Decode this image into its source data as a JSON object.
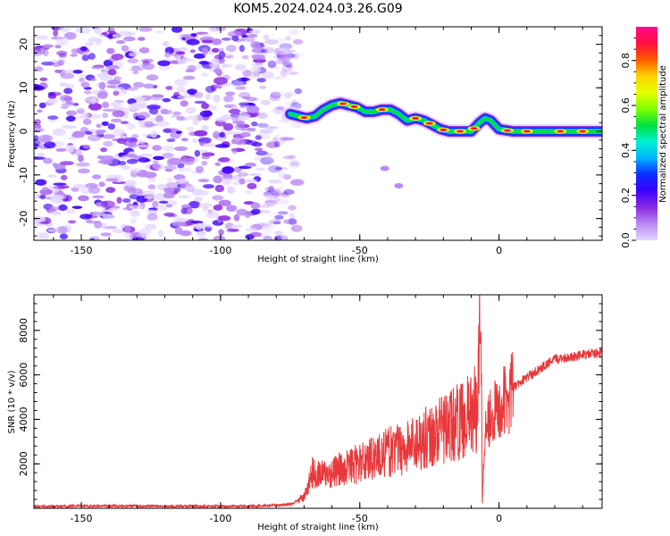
{
  "figure": {
    "title": "KOM5.2024.024.03.26.G09"
  },
  "colors": {
    "snr_line": "#e8383b",
    "frame": "#000000",
    "colormap": [
      "#e5d6ff",
      "#b98af5",
      "#8a2be2",
      "#3d00ff",
      "#0a2cff",
      "#00b3ff",
      "#00f0d0",
      "#00e040",
      "#7fff00",
      "#e6ff00",
      "#ffd200",
      "#ff5a00",
      "#ff1040",
      "#ff0a8c"
    ]
  },
  "chart_data": [
    {
      "type": "heatmap",
      "name": "spectrogram",
      "xlabel": "Height of straight line (km)",
      "ylabel": "Frequency (Hz)",
      "xlim": [
        -167,
        37
      ],
      "ylim": [
        -25,
        24
      ],
      "xticks": [
        -150,
        -100,
        -50,
        0
      ],
      "yticks": [
        -20,
        -10,
        0,
        10,
        20
      ],
      "ridge": [
        {
          "x": -75,
          "y": 4
        },
        {
          "x": -72,
          "y": 3.5
        },
        {
          "x": -69,
          "y": 3
        },
        {
          "x": -66,
          "y": 3.5
        },
        {
          "x": -63,
          "y": 5
        },
        {
          "x": -60,
          "y": 6
        },
        {
          "x": -57,
          "y": 6.5
        },
        {
          "x": -54,
          "y": 6
        },
        {
          "x": -51,
          "y": 5.5
        },
        {
          "x": -48,
          "y": 4.5
        },
        {
          "x": -45,
          "y": 4.5
        },
        {
          "x": -42,
          "y": 5
        },
        {
          "x": -39,
          "y": 5
        },
        {
          "x": -36,
          "y": 4
        },
        {
          "x": -33,
          "y": 2.5
        },
        {
          "x": -30,
          "y": 3
        },
        {
          "x": -27,
          "y": 2.5
        },
        {
          "x": -24,
          "y": 1.5
        },
        {
          "x": -21,
          "y": 0.5
        },
        {
          "x": -18,
          "y": 0
        },
        {
          "x": -14,
          "y": 0
        },
        {
          "x": -10,
          "y": 0
        },
        {
          "x": -7,
          "y": 2
        },
        {
          "x": -5,
          "y": 3
        },
        {
          "x": -3,
          "y": 2.5
        },
        {
          "x": 0,
          "y": 0.5
        },
        {
          "x": 5,
          "y": 0
        },
        {
          "x": 12,
          "y": 0
        },
        {
          "x": 20,
          "y": 0
        },
        {
          "x": 28,
          "y": 0
        },
        {
          "x": 37,
          "y": 0
        }
      ],
      "colorbar": {
        "label": "Normalized spectral amplitude",
        "range": [
          0,
          0.95
        ],
        "ticks": [
          0.0,
          0.2,
          0.4,
          0.6,
          0.8
        ],
        "tick_labels": [
          "0.0",
          "0.2",
          "0.4",
          "0.6",
          "0.8"
        ]
      }
    },
    {
      "type": "line",
      "name": "snr",
      "xlabel": "Height of straight line (km)",
      "ylabel": "SNR (10 * v/v)",
      "xlim": [
        -167,
        37
      ],
      "ylim": [
        0,
        9600
      ],
      "xticks": [
        -150,
        -100,
        -50,
        0
      ],
      "yticks": [
        2000,
        4000,
        6000,
        8000
      ],
      "series": [
        {
          "values": [
            {
              "x": -167,
              "y": 80
            },
            {
              "x": -140,
              "y": 110
            },
            {
              "x": -110,
              "y": 90
            },
            {
              "x": -85,
              "y": 100
            },
            {
              "x": -75,
              "y": 180
            },
            {
              "x": -70,
              "y": 500
            },
            {
              "x": -67,
              "y": 1600
            },
            {
              "x": -62,
              "y": 1500
            },
            {
              "x": -58,
              "y": 1700
            },
            {
              "x": -54,
              "y": 1900
            },
            {
              "x": -50,
              "y": 2000
            },
            {
              "x": -46,
              "y": 2300
            },
            {
              "x": -42,
              "y": 2400
            },
            {
              "x": -38,
              "y": 2600
            },
            {
              "x": -34,
              "y": 2700
            },
            {
              "x": -30,
              "y": 3000
            },
            {
              "x": -26,
              "y": 3200
            },
            {
              "x": -22,
              "y": 3400
            },
            {
              "x": -18,
              "y": 3700
            },
            {
              "x": -14,
              "y": 3900
            },
            {
              "x": -10,
              "y": 4300
            },
            {
              "x": -8,
              "y": 4500
            },
            {
              "x": -6.5,
              "y": 9500
            },
            {
              "x": -6,
              "y": 200
            },
            {
              "x": -5,
              "y": 3800
            },
            {
              "x": -3,
              "y": 4200
            },
            {
              "x": 0,
              "y": 4400
            },
            {
              "x": 5,
              "y": 5400
            },
            {
              "x": 10,
              "y": 5900
            },
            {
              "x": 15,
              "y": 6300
            },
            {
              "x": 20,
              "y": 6700
            },
            {
              "x": 25,
              "y": 6800
            },
            {
              "x": 30,
              "y": 6900
            },
            {
              "x": 37,
              "y": 7000
            }
          ]
        }
      ]
    }
  ]
}
